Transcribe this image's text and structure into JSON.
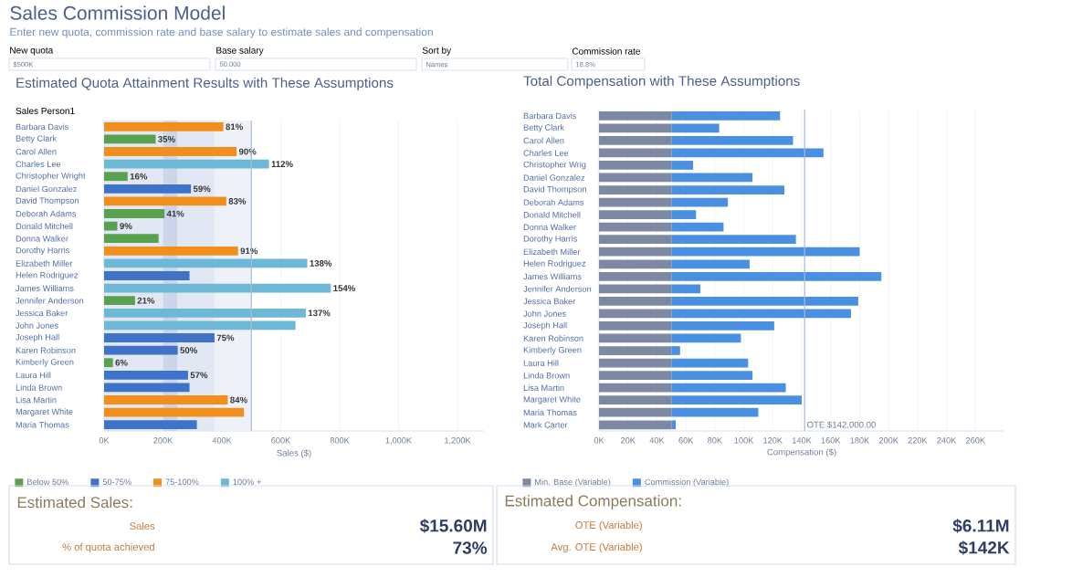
{
  "chart_data": [
    {
      "type": "other",
      "title": "Sales Commission Model",
      "subtitle": "Enter new quota, commission rate and base salary to estimate sales and compensation",
      "annotations": [
        "New quota",
        "$500K",
        "Base salary",
        "50,000",
        "Sort by",
        "Names",
        "Commission rate",
        "18.8%"
      ]
    },
    {
      "type": "bar",
      "orientation": "horizontal",
      "stacked": true,
      "title": "Estimated Quota Attainment Results with These Assumptions",
      "ylabel": "Sales Person1",
      "xlabel": "Sales ($)",
      "categories": [
        "Barbara Davis",
        "Betty Clark",
        "Carol Allen",
        "Charles Lee",
        "Christopher Wright",
        "Daniel Gonzalez",
        "David Thompson",
        "Deborah Adams",
        "Donald Mitchell",
        "Donna Walker",
        "Dorothy Harris",
        "Elizabeth Miller",
        "Helen Rodriguez",
        "James Williams",
        "Jennifer Anderson",
        "Jessica Baker",
        "John Jones",
        "Joseph Hall",
        "Karen Robinson",
        "Kimberly Green",
        "Laura Hill",
        "Linda Brown",
        "Lisa Martin",
        "Margaret White",
        "Maria Thomas"
      ],
      "series": [
        {
          "name": "Below 50%",
          "color": "#59a14f",
          "values": [
            null,
            175,
            null,
            null,
            80,
            null,
            null,
            205,
            45,
            185,
            null,
            null,
            null,
            null,
            105,
            null,
            null,
            null,
            null,
            30,
            null,
            null,
            null,
            null,
            null
          ]
        },
        {
          "name": "50-75%",
          "color": "#3f72c9",
          "values": [
            null,
            null,
            null,
            null,
            null,
            295,
            null,
            null,
            null,
            null,
            null,
            null,
            290,
            null,
            null,
            null,
            null,
            375,
            250,
            null,
            285,
            290,
            null,
            null,
            315
          ]
        },
        {
          "name": "75-100%",
          "color": "#f28e1c",
          "values": [
            405,
            null,
            450,
            null,
            null,
            null,
            415,
            null,
            null,
            null,
            455,
            null,
            null,
            null,
            null,
            null,
            null,
            null,
            null,
            null,
            null,
            null,
            420,
            475,
            null
          ]
        },
        {
          "name": "100% +",
          "color": "#6cb8d6",
          "values": [
            null,
            null,
            null,
            560,
            null,
            null,
            null,
            null,
            null,
            null,
            null,
            690,
            null,
            770,
            null,
            685,
            650,
            null,
            null,
            null,
            null,
            null,
            null,
            null,
            null
          ]
        }
      ],
      "annotations": [
        {
          "text": "81%",
          "x": 405,
          "y": "Barbara Davis"
        },
        {
          "text": "35%",
          "x": 175,
          "y": "Betty Clark"
        },
        {
          "text": "90%",
          "x": 450,
          "y": "Carol Allen"
        },
        {
          "text": "112%",
          "x": 560,
          "y": "Charles Lee"
        },
        {
          "text": "16%",
          "x": 80,
          "y": "Christopher Wright"
        },
        {
          "text": "59%",
          "x": 295,
          "y": "Daniel Gonzalez"
        },
        {
          "text": "83%",
          "x": 415,
          "y": "David Thompson"
        },
        {
          "text": "41%",
          "x": 205,
          "y": "Deborah Adams"
        },
        {
          "text": "9%",
          "x": 45,
          "y": "Donald Mitchell"
        },
        {
          "text": "91%",
          "x": 455,
          "y": "Dorothy Harris"
        },
        {
          "text": "138%",
          "x": 690,
          "y": "Elizabeth Miller"
        },
        {
          "text": "154%",
          "x": 770,
          "y": "James Williams"
        },
        {
          "text": "21%",
          "x": 105,
          "y": "Jennifer Anderson"
        },
        {
          "text": "137%",
          "x": 685,
          "y": "Jessica Baker"
        },
        {
          "text": "75%",
          "x": 375,
          "y": "Joseph Hall"
        },
        {
          "text": "50%",
          "x": 250,
          "y": "Karen Robinson"
        },
        {
          "text": "6%",
          "x": 30,
          "y": "Kimberly Green"
        },
        {
          "text": "57%",
          "x": 285,
          "y": "Laura Hill"
        },
        {
          "text": "84%",
          "x": 420,
          "y": "Lisa Martin"
        }
      ],
      "xlim": [
        0,
        1290
      ],
      "xticks": [
        {
          "value": 0,
          "label": "0K"
        },
        {
          "value": 200,
          "label": "200K"
        },
        {
          "value": 400,
          "label": "400K"
        },
        {
          "value": 600,
          "label": "600K"
        },
        {
          "value": 800,
          "label": "800K"
        },
        {
          "value": 1000,
          "label": "1,000K"
        },
        {
          "value": 1200,
          "label": "1,200K"
        }
      ],
      "bands": [
        {
          "axis": "x",
          "from": 0,
          "to": 200,
          "color": "#e2e8f3"
        },
        {
          "axis": "x",
          "from": 200,
          "to": 250,
          "color": "#ccd6ea"
        },
        {
          "axis": "x",
          "from": 250,
          "to": 375,
          "color": "#e2e8f3"
        },
        {
          "axis": "x",
          "from": 375,
          "to": 500,
          "color": "#eef2f8"
        }
      ],
      "ref_lines": [
        {
          "axis": "x",
          "value": 500,
          "color": "#a9bbdc"
        }
      ],
      "grid": "x",
      "legend": "bottom"
    },
    {
      "type": "bar",
      "orientation": "horizontal",
      "stacked": true,
      "title": "Total Compensation with These Assumptions",
      "xlabel": "Compensation ($)",
      "categories": [
        "Barbara Davis",
        "Betty Clark",
        "Carol Allen",
        "Charles Lee",
        "Christopher Wrig",
        "Daniel Gonzalez",
        "David Thompson",
        "Deborah Adams",
        "Donald Mitchell",
        "Donna Walker",
        "Dorothy Harris",
        "Elizabeth Miller",
        "Helen Rodriguez",
        "James Williams",
        "Jennifer Anderson",
        "Jessica Baker",
        "John Jones",
        "Joseph Hall",
        "Karen Robinson",
        "Kimberly Green",
        "Laura Hill",
        "Linda Brown",
        "Lisa Martin",
        "Margaret White",
        "Maria Thomas",
        "Mark Carter"
      ],
      "series": [
        {
          "name": "Min. Base (Variable)",
          "color": "#7d88a3",
          "values": [
            50,
            50,
            50,
            50,
            50,
            50,
            50,
            50,
            50,
            50,
            50,
            50,
            50,
            50,
            50,
            50,
            50,
            50,
            50,
            50,
            50,
            50,
            50,
            50,
            50,
            50
          ]
        },
        {
          "name": "Commission (Variable)",
          "color": "#4a90e2",
          "values": [
            75,
            33,
            84,
            105,
            15,
            56,
            78,
            39,
            17,
            36,
            86,
            130,
            54,
            145,
            20,
            129,
            124,
            71,
            48,
            6,
            53,
            56,
            79,
            90,
            60,
            3
          ]
        }
      ],
      "xlim": [
        0,
        280
      ],
      "xticks": [
        {
          "value": 0,
          "label": "0K"
        },
        {
          "value": 20,
          "label": "20K"
        },
        {
          "value": 40,
          "label": "40K"
        },
        {
          "value": 60,
          "label": "60K"
        },
        {
          "value": 80,
          "label": "80K"
        },
        {
          "value": 100,
          "label": "100K"
        },
        {
          "value": 120,
          "label": "120K"
        },
        {
          "value": 140,
          "label": "140K"
        },
        {
          "value": 160,
          "label": "160K"
        },
        {
          "value": 180,
          "label": "180K"
        },
        {
          "value": 200,
          "label": "200K"
        },
        {
          "value": 220,
          "label": "220K"
        },
        {
          "value": 240,
          "label": "240K"
        },
        {
          "value": 260,
          "label": "260K"
        }
      ],
      "ref_lines": [
        {
          "axis": "x",
          "value": 142,
          "label": "OTE $142,000.00",
          "color": "#a9bbdc"
        }
      ],
      "grid": "x",
      "legend": "bottom"
    },
    {
      "type": "other",
      "title": "Estimated Sales:",
      "annotations": [
        "Sales",
        "$15.60M",
        "% of quota achieved",
        "73%"
      ]
    },
    {
      "type": "other",
      "title": "Estimated Compensation:",
      "annotations": [
        "OTE (Variable)",
        "$6.11M",
        "Avg. OTE (Variable)",
        "$142K"
      ]
    }
  ]
}
